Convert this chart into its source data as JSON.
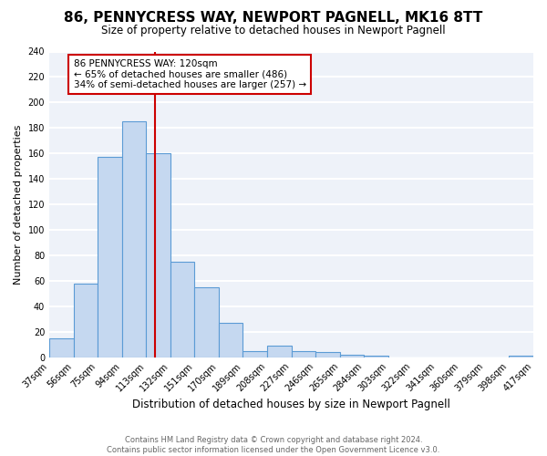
{
  "title": "86, PENNYCRESS WAY, NEWPORT PAGNELL, MK16 8TT",
  "subtitle": "Size of property relative to detached houses in Newport Pagnell",
  "xlabel": "Distribution of detached houses by size in Newport Pagnell",
  "ylabel": "Number of detached properties",
  "bin_edges": [
    37,
    56,
    75,
    94,
    113,
    132,
    151,
    170,
    189,
    208,
    227,
    246,
    265,
    284,
    303,
    322,
    341,
    360,
    379,
    398,
    417
  ],
  "counts": [
    15,
    58,
    157,
    185,
    160,
    75,
    55,
    27,
    5,
    9,
    5,
    4,
    2,
    1,
    0,
    0,
    0,
    0,
    0,
    1
  ],
  "bar_color": "#c5d8f0",
  "bar_edge_color": "#5b9bd5",
  "vline_x": 120,
  "vline_color": "#cc0000",
  "annotation_text": "86 PENNYCRESS WAY: 120sqm\n← 65% of detached houses are smaller (486)\n34% of semi-detached houses are larger (257) →",
  "annotation_box_color": "white",
  "annotation_box_edge_color": "#cc0000",
  "ylim": [
    0,
    240
  ],
  "yticks": [
    0,
    20,
    40,
    60,
    80,
    100,
    120,
    140,
    160,
    180,
    200,
    220,
    240
  ],
  "title_fontsize": 11,
  "subtitle_fontsize": 8.5,
  "xlabel_fontsize": 8.5,
  "ylabel_fontsize": 8,
  "tick_fontsize": 7,
  "annotation_fontsize": 7.5,
  "footer_text": "Contains HM Land Registry data © Crown copyright and database right 2024.\nContains public sector information licensed under the Open Government Licence v3.0.",
  "background_color": "#eef2f9",
  "grid_color": "white",
  "tick_labels": [
    "37sqm",
    "56sqm",
    "75sqm",
    "94sqm",
    "113sqm",
    "132sqm",
    "151sqm",
    "170sqm",
    "189sqm",
    "208sqm",
    "227sqm",
    "246sqm",
    "265sqm",
    "284sqm",
    "303sqm",
    "322sqm",
    "341sqm",
    "360sqm",
    "379sqm",
    "398sqm",
    "417sqm"
  ]
}
